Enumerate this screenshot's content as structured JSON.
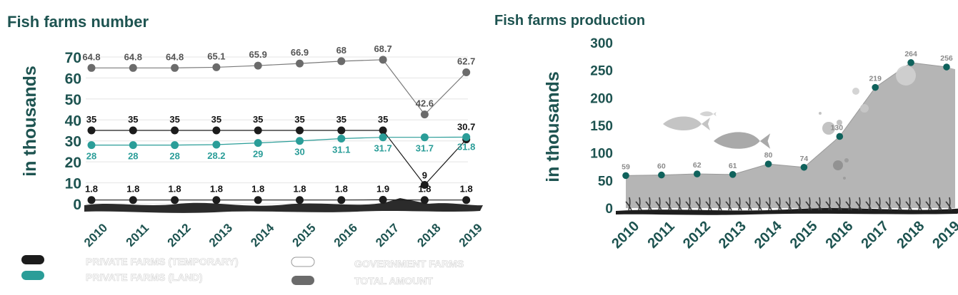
{
  "titles": {
    "left": "Fish farms number",
    "right": "Fish farms production"
  },
  "colors": {
    "teal_dark": "#1d5350",
    "teal": "#2a9d98",
    "black": "#1c1c1c",
    "grey": "#6b6b6b",
    "white_marker": "#ffffff",
    "area_fill": "#b5b5b5",
    "production_marker": "#0f625c"
  },
  "legend": [
    {
      "label": "PRIVATE FARMS (TEMPORARY)",
      "color": "#1c1c1c"
    },
    {
      "label": "PRIVATE FARMS (LAND)",
      "color": "#2a9d98"
    },
    {
      "label": "GOVERNMENT FARMS",
      "color": "#ffffff"
    },
    {
      "label": "TOTAL AMOUNT",
      "color": "#6b6b6b"
    }
  ],
  "chart_data": [
    {
      "type": "line",
      "title": "Fish farms number",
      "ylabel": "in thousands",
      "ylim": [
        0,
        70
      ],
      "yticks": [
        0,
        10,
        20,
        30,
        40,
        50,
        60,
        70
      ],
      "x": [
        "2010",
        "2011",
        "2012",
        "2013",
        "2014",
        "2015",
        "2016",
        "2017",
        "2018",
        "2019"
      ],
      "series": [
        {
          "name": "TOTAL AMOUNT",
          "color": "#6b6b6b",
          "values": [
            64.8,
            64.8,
            64.8,
            65.1,
            65.9,
            66.9,
            68,
            68.7,
            42.6,
            62.7
          ],
          "labels": [
            "64.8",
            "64.8",
            "64.8",
            "65.1",
            "65.9",
            "66.9",
            "68",
            "68.7",
            "42.6",
            "62.7"
          ]
        },
        {
          "name": "PRIVATE FARMS (TEMPORARY)",
          "color": "#1c1c1c",
          "values": [
            35,
            35,
            35,
            35,
            35,
            35,
            35,
            35,
            9,
            30.7
          ],
          "labels": [
            "35",
            "35",
            "35",
            "35",
            "35",
            "35",
            "35",
            "35",
            "9",
            "30.7"
          ]
        },
        {
          "name": "PRIVATE FARMS (LAND)",
          "color": "#2a9d98",
          "values": [
            28,
            28,
            28,
            28.2,
            29,
            30,
            31.1,
            31.7,
            31.7,
            31.8
          ],
          "labels": [
            "28",
            "28",
            "28",
            "28.2",
            "29",
            "30",
            "31.1",
            "31.7",
            "31.7",
            "31.8"
          ]
        },
        {
          "name": "GOVERNMENT FARMS",
          "color": "#1c1c1c",
          "values": [
            1.8,
            1.8,
            1.8,
            1.8,
            1.8,
            1.8,
            1.8,
            1.9,
            1.8,
            1.8
          ],
          "labels": [
            "1.8",
            "1.8",
            "1.8",
            "1.8",
            "1.8",
            "1.8",
            "1.8",
            "1.9",
            "1.8",
            "1.8"
          ]
        }
      ]
    },
    {
      "type": "area",
      "title": "Fish farms production",
      "ylabel": "in thousands",
      "ylim": [
        0,
        300
      ],
      "yticks": [
        0,
        50,
        100,
        150,
        200,
        250,
        300
      ],
      "x": [
        "2010",
        "2011",
        "2012",
        "2013",
        "2014",
        "2015",
        "2016",
        "2017",
        "2018",
        "2019"
      ],
      "series": [
        {
          "color": "#b5b5b5",
          "values": [
            59,
            60,
            62,
            61,
            80,
            74,
            130,
            219,
            264,
            256
          ],
          "labels": [
            "59",
            "60",
            "62",
            "61",
            "80",
            "74",
            "130",
            "219",
            "264",
            "256"
          ]
        }
      ]
    }
  ]
}
